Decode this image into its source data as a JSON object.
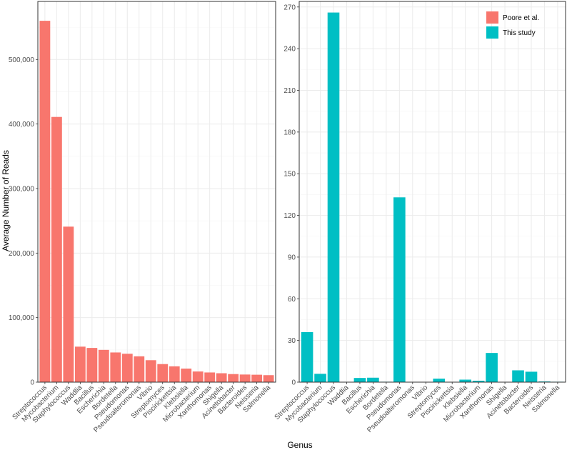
{
  "colors": {
    "poore": "#F8766D",
    "study": "#00BFC4",
    "grid_major": "#ebebeb",
    "grid_minor": "#f5f5f5",
    "border": "#333333"
  },
  "chart_data": {
    "type": "bar",
    "xlabel": "Genus",
    "ylabel": "Average Number of Reads",
    "legend": {
      "position": "top-right",
      "entries": [
        "Poore et al.",
        "This study"
      ]
    },
    "categories": [
      "Streptococcus",
      "Mycobacterium",
      "Staphylococcus",
      "Waddlia",
      "Bacillus",
      "Escherichia",
      "Bordetella",
      "Pseudomonas",
      "Pseudoalteromonas",
      "Vibrio",
      "Streptomyces",
      "Piscirickettsia",
      "Klebsiella",
      "Microbacterium",
      "Xanthomonas",
      "Shigella",
      "Acinetobacter",
      "Bacteroides",
      "Neisseria",
      "Salmonella"
    ],
    "panels": [
      {
        "series": "Poore et al.",
        "ylim": [
          0,
          590000
        ],
        "yticks": [
          0,
          100000,
          200000,
          300000,
          400000,
          500000
        ],
        "ytick_labels": [
          "0",
          "100,000",
          "200,000",
          "300,000",
          "400,000",
          "500,000"
        ],
        "values": [
          560000,
          411000,
          241000,
          55000,
          53000,
          50000,
          46000,
          44000,
          40000,
          34000,
          28000,
          24500,
          21000,
          16500,
          15000,
          13800,
          12500,
          11800,
          11500,
          10800
        ]
      },
      {
        "series": "This study",
        "ylim": [
          0,
          274
        ],
        "yticks": [
          0,
          30,
          60,
          90,
          120,
          150,
          180,
          210,
          240,
          270
        ],
        "ytick_labels": [
          "0",
          "30",
          "60",
          "90",
          "120",
          "150",
          "180",
          "210",
          "240",
          "270"
        ],
        "values": [
          36,
          6,
          266,
          0,
          3,
          3.2,
          0.3,
          133,
          0.1,
          0,
          2.5,
          0,
          1.8,
          1,
          21,
          0,
          8.5,
          7.5,
          0.5,
          0.3
        ]
      }
    ]
  }
}
